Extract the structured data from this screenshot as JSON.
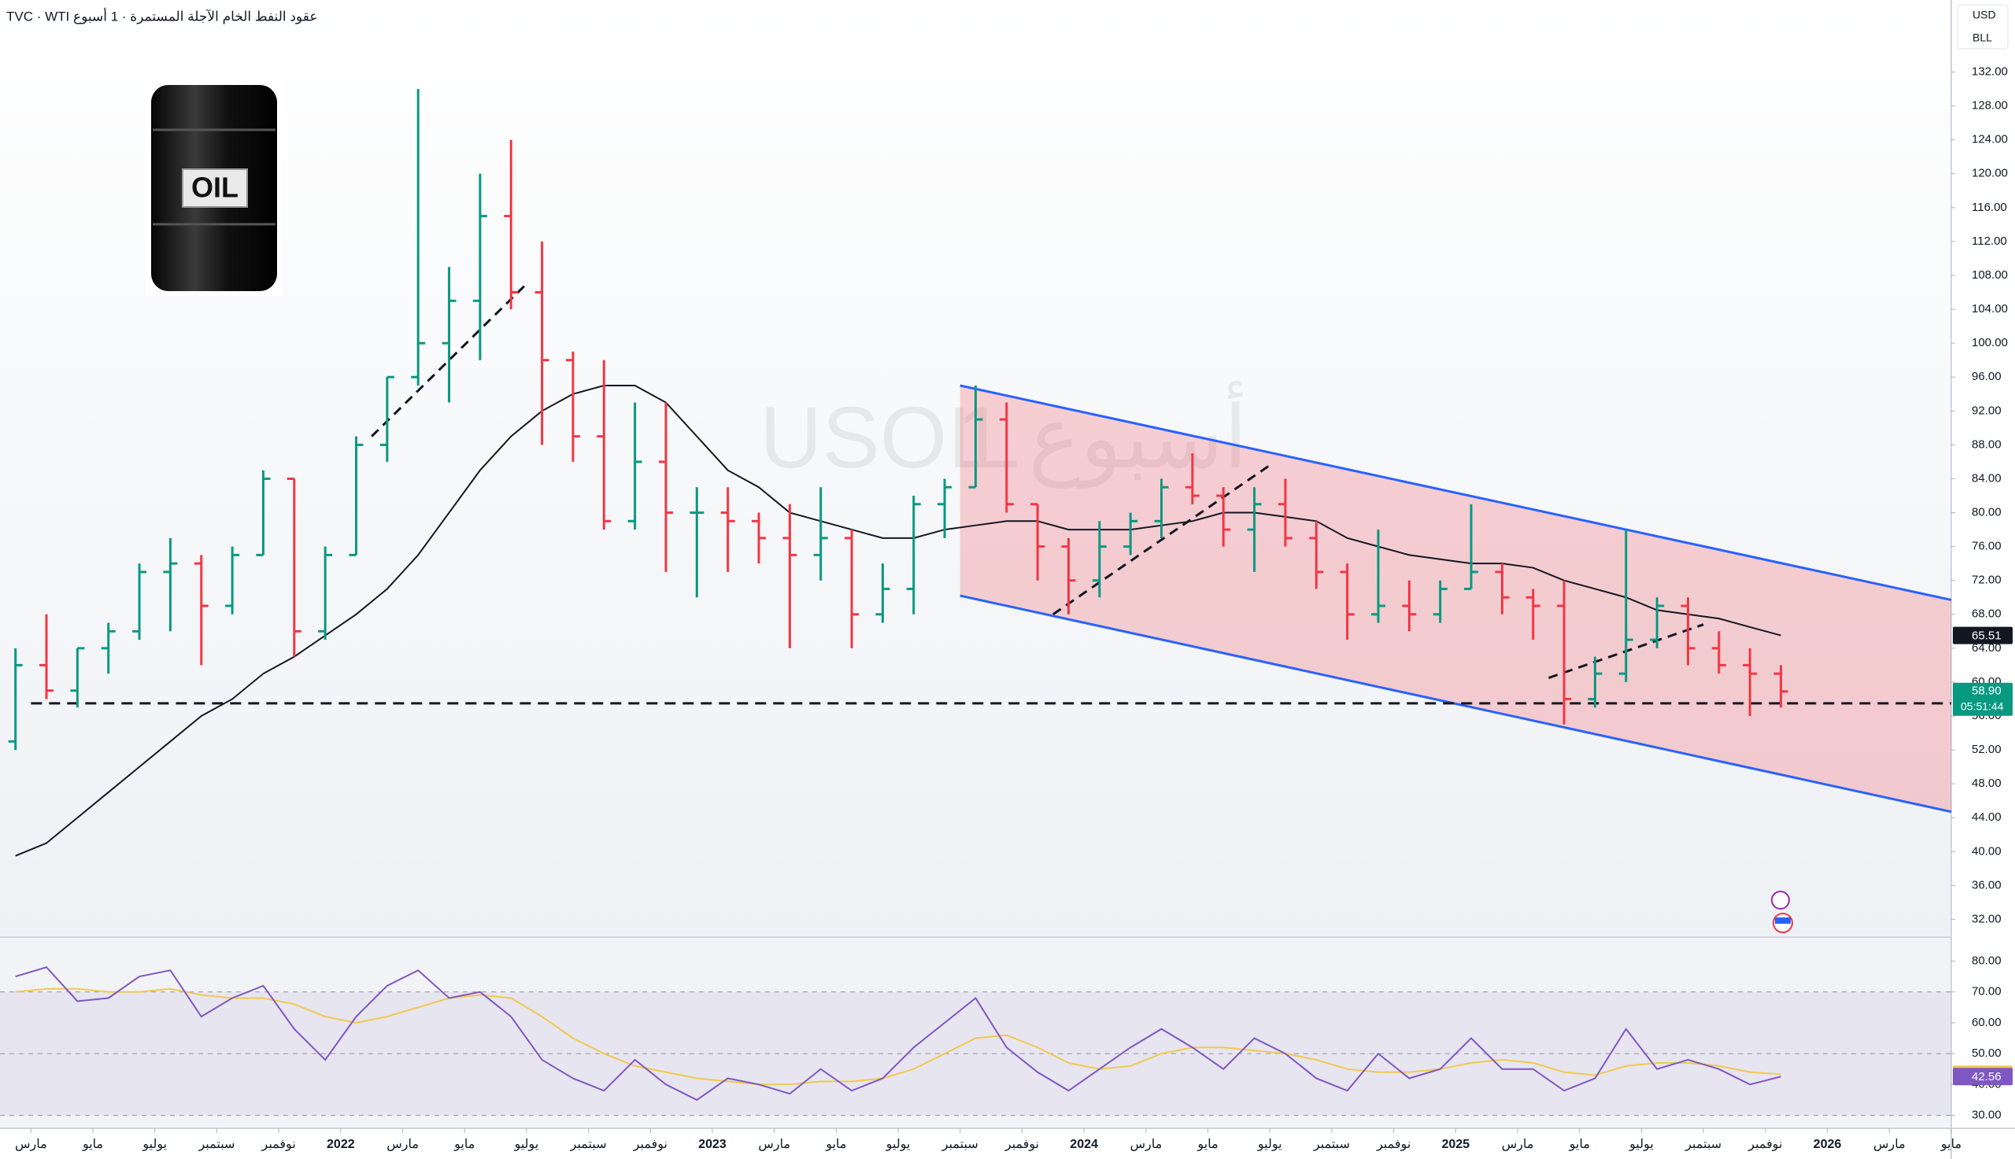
{
  "header": {
    "symbol_line": "TVC · WTI عقود النفط الخام الآجلة المستمرة · 1 أسبوع",
    "currency": "USD",
    "unit": "BLL",
    "watermark_symbol": "USOIL",
    "watermark_interval": "أسبوع 1",
    "barrel_label": "OIL"
  },
  "chart_data": [
    {
      "type": "ohlc",
      "x": [
        "2021-02",
        "2021-03",
        "2021-04",
        "2021-05",
        "2021-06",
        "2021-07",
        "2021-08",
        "2021-09",
        "2021-10",
        "2021-11",
        "2021-12",
        "2022-01",
        "2022-02",
        "2022-03",
        "2022-04",
        "2022-05",
        "2022-06",
        "2022-07",
        "2022-08",
        "2022-09",
        "2022-10",
        "2022-11",
        "2022-12",
        "2023-01",
        "2023-02",
        "2023-03",
        "2023-04",
        "2023-05",
        "2023-06",
        "2023-07",
        "2023-08",
        "2023-09",
        "2023-10",
        "2023-11",
        "2023-12",
        "2024-01",
        "2024-02",
        "2024-03",
        "2024-04",
        "2024-05",
        "2024-06",
        "2024-07",
        "2024-08",
        "2024-09",
        "2024-10",
        "2024-11",
        "2024-12",
        "2025-01",
        "2025-02",
        "2025-03",
        "2025-04",
        "2025-05",
        "2025-06",
        "2025-07",
        "2025-08",
        "2025-09",
        "2025-10",
        "2025-11"
      ],
      "open": [
        53,
        62,
        59,
        64,
        66,
        73,
        74,
        69,
        75,
        84,
        66,
        75,
        88,
        96,
        100,
        105,
        115,
        106,
        98,
        89,
        79,
        86,
        80,
        80,
        79,
        77,
        75,
        77,
        68,
        71,
        81,
        83,
        91,
        81,
        76,
        72,
        76,
        79,
        83,
        82,
        78,
        81,
        77,
        73,
        68,
        69,
        68,
        71,
        73,
        70,
        69,
        58,
        61,
        65,
        69,
        64,
        62,
        61
      ],
      "high": [
        64,
        68,
        64,
        67,
        74,
        77,
        75,
        76,
        85,
        84,
        76,
        89,
        96,
        130,
        109,
        120,
        124,
        112,
        99,
        98,
        93,
        93,
        83,
        83,
        80,
        81,
        83,
        78,
        74,
        82,
        84,
        95,
        93,
        81,
        77,
        79,
        80,
        84,
        87,
        83,
        83,
        84,
        79,
        74,
        78,
        72,
        72,
        81,
        74,
        71,
        72,
        63,
        78,
        70,
        70,
        66,
        64,
        62
      ],
      "low": [
        52,
        58,
        57,
        61,
        65,
        66,
        62,
        68,
        75,
        63,
        65,
        75,
        86,
        95,
        93,
        98,
        104,
        88,
        86,
        78,
        78,
        73,
        70,
        73,
        74,
        64,
        72,
        64,
        67,
        68,
        77,
        83,
        80,
        72,
        68,
        70,
        75,
        77,
        81,
        76,
        73,
        76,
        71,
        65,
        67,
        66,
        67,
        71,
        68,
        65,
        55,
        57,
        60,
        64,
        62,
        61,
        56,
        57
      ],
      "close": [
        62,
        59,
        64,
        66,
        73,
        74,
        69,
        75,
        84,
        66,
        75,
        88,
        96,
        100,
        105,
        115,
        106,
        98,
        89,
        79,
        86,
        80,
        80,
        79,
        77,
        75,
        77,
        68,
        71,
        81,
        83,
        91,
        81,
        76,
        72,
        76,
        79,
        83,
        82,
        78,
        81,
        77,
        73,
        68,
        69,
        68,
        71,
        73,
        70,
        69,
        58,
        61,
        65,
        69,
        64,
        62,
        61,
        58.9
      ],
      "up_color": "#089981",
      "down_color": "#f23645",
      "ma": {
        "color": "#131722",
        "values": [
          39.5,
          41,
          44,
          47,
          50,
          53,
          56,
          58,
          61,
          63,
          65.5,
          68,
          71,
          75,
          80,
          85,
          89,
          92,
          94,
          95,
          95,
          93,
          89,
          85,
          83,
          80,
          79,
          78,
          77,
          77,
          78,
          78.5,
          79,
          79,
          78,
          78,
          78,
          78.5,
          79,
          80,
          80,
          79.5,
          79,
          77,
          76,
          75,
          74.5,
          74,
          74,
          73.5,
          72,
          71,
          70,
          68.5,
          68,
          67.5,
          66.5,
          65.51
        ]
      },
      "xlim": [
        "2021-02",
        "2026-05"
      ],
      "ylim": [
        30,
        140.5
      ],
      "yticks": [
        {
          "value": 32,
          "label": "32.00"
        },
        {
          "value": 36,
          "label": "36.00"
        },
        {
          "value": 40,
          "label": "40.00"
        },
        {
          "value": 44,
          "label": "44.00"
        },
        {
          "value": 48,
          "label": "48.00"
        },
        {
          "value": 52,
          "label": "52.00"
        },
        {
          "value": 56,
          "label": "56.00"
        },
        {
          "value": 60,
          "label": "60.00"
        },
        {
          "value": 64,
          "label": "64.00"
        },
        {
          "value": 68,
          "label": "68.00"
        },
        {
          "value": 72,
          "label": "72.00"
        },
        {
          "value": 76,
          "label": "76.00"
        },
        {
          "value": 80,
          "label": "80.00"
        },
        {
          "value": 84,
          "label": "84.00"
        },
        {
          "value": 88,
          "label": "88.00"
        },
        {
          "value": 92,
          "label": "92.00"
        },
        {
          "value": 96,
          "label": "96.00"
        },
        {
          "value": 100,
          "label": "100.00"
        },
        {
          "value": 104,
          "label": "104.00"
        },
        {
          "value": 108,
          "label": "108.00"
        },
        {
          "value": 112,
          "label": "112.00"
        },
        {
          "value": 116,
          "label": "116.00"
        },
        {
          "value": 120,
          "label": "120.00"
        },
        {
          "value": 124,
          "label": "124.00"
        },
        {
          "value": 128,
          "label": "128.00"
        },
        {
          "value": 132,
          "label": "132.00"
        }
      ],
      "channel": {
        "x": [
          "2023-09",
          "2026-05"
        ],
        "upper": [
          95,
          69.7
        ],
        "lower": [
          70.2,
          44.7
        ],
        "color": "#2962ff"
      },
      "support": {
        "value": 57.5,
        "x": [
          "2021-03",
          "2026-05"
        ]
      },
      "trendlines": [
        {
          "x": [
            "2022-02",
            "2022-07"
          ],
          "y": [
            89,
            107
          ]
        },
        {
          "x": [
            "2023-12",
            "2024-07"
          ],
          "y": [
            68,
            85.6
          ]
        },
        {
          "x": [
            "2025-04",
            "2025-09"
          ],
          "y": [
            60.5,
            66.8
          ]
        }
      ],
      "last_price": {
        "value": 58.9,
        "label": "58.90"
      },
      "countdown": "05:51:44",
      "ma_last": {
        "value": 65.51,
        "label": "65.51"
      }
    },
    {
      "type": "line",
      "values": [
        75,
        78,
        67,
        68,
        75,
        77,
        62,
        68,
        72,
        58,
        48,
        62,
        72,
        77,
        68,
        70,
        62,
        48,
        42,
        38,
        48,
        40,
        35,
        42,
        40,
        37,
        45,
        38,
        42,
        52,
        60,
        68,
        52,
        44,
        38,
        45,
        52,
        58,
        52,
        45,
        55,
        50,
        42,
        38,
        50,
        42,
        45,
        55,
        45,
        45,
        38,
        42,
        58,
        45,
        48,
        45,
        40,
        42.56
      ],
      "color": "#7e57c2",
      "ma": {
        "color": "#f2c94c",
        "values": [
          70,
          71,
          71,
          70,
          70,
          71,
          69,
          68,
          68,
          66,
          62,
          60,
          62,
          65,
          68,
          69,
          68,
          62,
          55,
          50,
          46,
          44,
          42,
          41,
          40,
          40,
          41,
          41,
          42,
          45,
          50,
          55,
          56,
          52,
          47,
          45,
          46,
          50,
          52,
          52,
          51,
          50,
          48,
          45,
          44,
          44,
          45,
          47,
          48,
          47,
          44,
          43,
          46,
          47,
          47,
          46,
          44,
          43.34
        ]
      },
      "band": [
        30,
        70
      ],
      "mid": 50,
      "ylim": [
        25.8,
        87.5
      ],
      "yticks": [
        {
          "value": 30,
          "label": "30.00"
        },
        {
          "value": 40,
          "label": "40.00"
        },
        {
          "value": 50,
          "label": "50.00"
        },
        {
          "value": 60,
          "label": "60.00"
        },
        {
          "value": 70,
          "label": "70.00"
        },
        {
          "value": 80,
          "label": "80.00"
        }
      ],
      "last": {
        "value": 42.56,
        "label": "42.56"
      },
      "ma_last": {
        "value": 43.34,
        "label": "43.34"
      },
      "xticks": [
        {
          "value": "2021-03",
          "label": "مارس"
        },
        {
          "value": "2021-05",
          "label": "مايو"
        },
        {
          "value": "2021-07",
          "label": "يوليو"
        },
        {
          "value": "2021-09",
          "label": "سبتمبر"
        },
        {
          "value": "2021-11",
          "label": "نوفمبر"
        },
        {
          "value": "2022-01",
          "label": "2022"
        },
        {
          "value": "2022-03",
          "label": "مارس"
        },
        {
          "value": "2022-05",
          "label": "مايو"
        },
        {
          "value": "2022-07",
          "label": "يوليو"
        },
        {
          "value": "2022-09",
          "label": "سبتمبر"
        },
        {
          "value": "2022-11",
          "label": "نوفمبر"
        },
        {
          "value": "2023-01",
          "label": "2023"
        },
        {
          "value": "2023-03",
          "label": "مارس"
        },
        {
          "value": "2023-05",
          "label": "مايو"
        },
        {
          "value": "2023-07",
          "label": "يوليو"
        },
        {
          "value": "2023-09",
          "label": "سبتمبر"
        },
        {
          "value": "2023-11",
          "label": "نوفمبر"
        },
        {
          "value": "2024-01",
          "label": "2024"
        },
        {
          "value": "2024-03",
          "label": "مارس"
        },
        {
          "value": "2024-05",
          "label": "مايو"
        },
        {
          "value": "2024-07",
          "label": "يوليو"
        },
        {
          "value": "2024-09",
          "label": "سبتمبر"
        },
        {
          "value": "2024-11",
          "label": "نوفمبر"
        },
        {
          "value": "2025-01",
          "label": "2025"
        },
        {
          "value": "2025-03",
          "label": "مارس"
        },
        {
          "value": "2025-05",
          "label": "مايو"
        },
        {
          "value": "2025-07",
          "label": "يوليو"
        },
        {
          "value": "2025-09",
          "label": "سبتمبر"
        },
        {
          "value": "2025-11",
          "label": "نوفمبر"
        },
        {
          "value": "2026-01",
          "label": "2026"
        },
        {
          "value": "2026-03",
          "label": "مارس"
        },
        {
          "value": "2026-05",
          "label": "مايو"
        }
      ]
    }
  ]
}
